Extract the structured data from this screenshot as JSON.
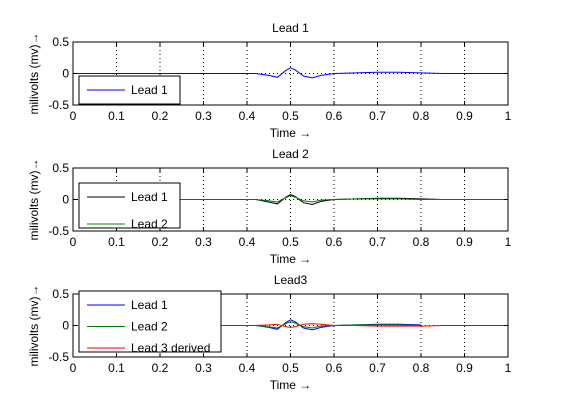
{
  "chart_data": [
    {
      "type": "line",
      "title": "Lead 1",
      "xlabel": "Time →",
      "ylabel": "milivolts  (mv)→",
      "xlim": [
        0,
        1
      ],
      "ylim": [
        -0.5,
        0.5
      ],
      "xticks": [
        "0",
        "0.1",
        "0.2",
        "0.3",
        "0.4",
        "0.5",
        "0.6",
        "0.7",
        "0.8",
        "0.9",
        "1"
      ],
      "yticks": [
        "0.5",
        "0",
        "-0.5"
      ],
      "grid": true,
      "legend_position": "lower-left",
      "series": [
        {
          "name": "Lead 1",
          "color": "#0000ff",
          "x": [
            0,
            0.3,
            0.42,
            0.45,
            0.47,
            0.49,
            0.5,
            0.51,
            0.53,
            0.55,
            0.57,
            0.6,
            0.65,
            0.7,
            0.75,
            0.8,
            0.85,
            0.9,
            1.0
          ],
          "y": [
            0,
            0,
            0,
            -0.03,
            -0.06,
            0.05,
            0.09,
            0.06,
            -0.04,
            -0.07,
            -0.03,
            0.0,
            0.01,
            0.02,
            0.02,
            0.01,
            0.0,
            0,
            0
          ]
        }
      ]
    },
    {
      "type": "line",
      "title": "Lead 2",
      "xlabel": "Time →",
      "ylabel": "milivolts  (mv)→",
      "xlim": [
        0,
        1
      ],
      "ylim": [
        -0.5,
        0.5
      ],
      "xticks": [
        "0",
        "0.1",
        "0.2",
        "0.3",
        "0.4",
        "0.5",
        "0.6",
        "0.7",
        "0.8",
        "0.9",
        "1"
      ],
      "yticks": [
        "0.5",
        "0",
        "-0.5"
      ],
      "grid": true,
      "legend_position": "lower-left",
      "series": [
        {
          "name": "Lead 1",
          "color": "#000000",
          "x": [
            0.05,
            0.3,
            0.42,
            0.45,
            0.47,
            0.49,
            0.5,
            0.51,
            0.53,
            0.55,
            0.57,
            0.6,
            0.65,
            0.7,
            0.75,
            0.8,
            0.85
          ],
          "y": [
            0,
            0,
            0,
            -0.04,
            -0.07,
            0.04,
            0.08,
            0.05,
            -0.05,
            -0.08,
            -0.03,
            0.0,
            0.01,
            0.02,
            0.02,
            0.01,
            0.0
          ]
        },
        {
          "name": "Lead 2",
          "color": "#008000",
          "x": [
            0.05,
            0.3,
            0.42,
            0.45,
            0.47,
            0.49,
            0.5,
            0.51,
            0.53,
            0.55,
            0.57,
            0.6,
            0.65,
            0.7,
            0.75,
            0.8,
            0.85,
            0.9,
            1.0
          ],
          "y": [
            0,
            0,
            0,
            -0.02,
            -0.04,
            0.03,
            0.06,
            0.04,
            -0.02,
            -0.04,
            -0.01,
            0.0,
            0.01,
            0.01,
            0.01,
            0.0,
            0.0,
            0,
            0
          ]
        }
      ]
    },
    {
      "type": "line",
      "title": "Lead3",
      "xlabel": "Time →",
      "ylabel": "milivolts  (mv)→",
      "xlim": [
        0,
        1
      ],
      "ylim": [
        -0.5,
        0.5
      ],
      "xticks": [
        "0",
        "0.1",
        "0.2",
        "0.3",
        "0.4",
        "0.5",
        "0.6",
        "0.7",
        "0.8",
        "0.9",
        "1"
      ],
      "yticks": [
        "0.5",
        "0",
        "-0.5"
      ],
      "grid": true,
      "legend_position": "top-left",
      "series": [
        {
          "name": "Lead 1",
          "color": "#0000ff",
          "x": [
            0.3,
            0.42,
            0.45,
            0.47,
            0.49,
            0.5,
            0.51,
            0.53,
            0.55,
            0.57,
            0.6,
            0.65,
            0.7,
            0.75,
            0.8
          ],
          "y": [
            0,
            0,
            -0.03,
            -0.06,
            0.05,
            0.09,
            0.06,
            -0.04,
            -0.07,
            -0.03,
            0.0,
            0.01,
            0.02,
            0.02,
            0.01
          ]
        },
        {
          "name": "Lead 2",
          "color": "#008000",
          "x": [
            0.3,
            0.42,
            0.45,
            0.47,
            0.49,
            0.5,
            0.51,
            0.53,
            0.55,
            0.57,
            0.6,
            0.65,
            0.7,
            0.75,
            0.8
          ],
          "y": [
            0,
            0,
            -0.02,
            -0.04,
            0.03,
            0.06,
            0.04,
            -0.02,
            -0.04,
            -0.01,
            0.0,
            0.01,
            0.01,
            0.01,
            0.0
          ]
        },
        {
          "name": "Lead 3 derived",
          "color": "#ff0000",
          "x": [
            0.3,
            0.42,
            0.45,
            0.47,
            0.49,
            0.5,
            0.51,
            0.53,
            0.55,
            0.57,
            0.6,
            0.65,
            0.7,
            0.75,
            0.8,
            0.85,
            0.9,
            1.0
          ],
          "y": [
            0,
            0,
            0.01,
            0.02,
            -0.02,
            -0.03,
            -0.02,
            0.02,
            0.03,
            0.02,
            0.0,
            0.0,
            -0.01,
            -0.01,
            -0.01,
            0.0,
            0,
            0
          ]
        }
      ]
    }
  ]
}
